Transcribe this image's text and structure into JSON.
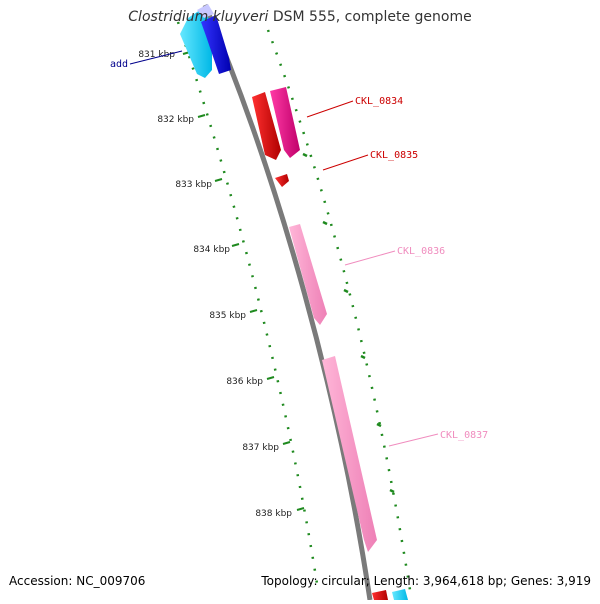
{
  "title": {
    "species": "Clostridium kluyveri",
    "strain_suffix": " DSM 555, complete genome"
  },
  "footer": {
    "accession": "Accession: NC_009706",
    "summary": "Topology: circular; Length: 3,964,618 bp; Genes: 3,919"
  },
  "tick_labels": [
    "831 kbp",
    "832 kbp",
    "833 kbp",
    "834 kbp",
    "835 kbp",
    "836 kbp",
    "837 kbp",
    "838 kbp"
  ],
  "colors": {
    "backbone": "#7a7a7a",
    "tick_green": "#1f8a1f",
    "label_red": "#cc0000",
    "label_pink": "#f08cbe",
    "label_blue": "#00008b"
  },
  "features": [
    {
      "name": "add",
      "color": "blue",
      "strand": "inner"
    },
    {
      "name": "CKL_0834",
      "color": "red",
      "strand": "outer"
    },
    {
      "name": "CKL_0835",
      "color": "red",
      "strand": "outer"
    },
    {
      "name": "CKL_0836",
      "color": "pink",
      "strand": "outer"
    },
    {
      "name": "CKL_0837",
      "color": "pink",
      "strand": "outer"
    }
  ]
}
